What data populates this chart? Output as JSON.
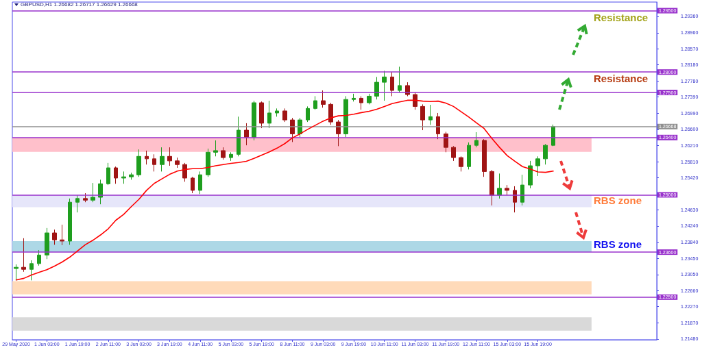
{
  "chart_data": {
    "type": "candlestick",
    "title": "GBPUSD,H1 1.26682 1.26717 1.26629 1.26668",
    "categories": [
      "29 May 2020",
      null,
      null,
      null,
      "1 Jun 03:00",
      null,
      null,
      null,
      "1 Jun 19:00",
      null,
      null,
      null,
      "2 Jun 11:00",
      null,
      null,
      null,
      "3 Jun 03:00",
      null,
      null,
      null,
      "3 Jun 19:00",
      null,
      null,
      null,
      "4 Jun 11:00",
      null,
      null,
      null,
      "5 Jun 03:00",
      null,
      null,
      null,
      "5 Jun 19:00",
      null,
      null,
      null,
      "8 Jun 11:00",
      null,
      null,
      null,
      "9 Jun 03:00",
      null,
      null,
      null,
      "9 Jun 19:00",
      null,
      null,
      null,
      "10 Jun 11:00",
      null,
      null,
      null,
      "11 Jun 03:00",
      null,
      null,
      null,
      "11 Jun 19:00",
      null,
      null,
      null,
      "12 Jun 11:00",
      null,
      null,
      null,
      "15 Jun 03:00",
      null,
      null,
      null,
      "15 Jun 19:00",
      null,
      null,
      null,
      null,
      null,
      null,
      null,
      null,
      null,
      null,
      null,
      null,
      null,
      null,
      null
    ],
    "ohlc": [
      [
        1.232,
        1.233,
        1.2291,
        1.2323
      ],
      [
        1.2323,
        1.2394,
        1.2312,
        1.2318
      ],
      [
        1.2318,
        1.234,
        1.2291,
        1.2332
      ],
      [
        1.2332,
        1.2365,
        1.2327,
        1.2353
      ],
      [
        1.2353,
        1.2419,
        1.2343,
        1.2407
      ],
      [
        1.2407,
        1.2415,
        1.2378,
        1.239
      ],
      [
        1.239,
        1.2427,
        1.2377,
        1.2387
      ],
      [
        1.2387,
        1.2491,
        1.2378,
        1.2482
      ],
      [
        1.2482,
        1.2499,
        1.2457,
        1.2491
      ],
      [
        1.2491,
        1.2504,
        1.2482,
        1.2487
      ],
      [
        1.2487,
        1.2529,
        1.2482,
        1.2494
      ],
      [
        1.2494,
        1.2537,
        1.2477,
        1.2527
      ],
      [
        1.2527,
        1.2578,
        1.2524,
        1.2566
      ],
      [
        1.2566,
        1.2569,
        1.2527,
        1.2541
      ],
      [
        1.2541,
        1.2557,
        1.2527,
        1.2544
      ],
      [
        1.2544,
        1.2554,
        1.2537,
        1.2549
      ],
      [
        1.2549,
        1.2611,
        1.2544,
        1.2594
      ],
      [
        1.2594,
        1.2608,
        1.2574,
        1.2588
      ],
      [
        1.2588,
        1.2599,
        1.2557,
        1.2574
      ],
      [
        1.2574,
        1.2616,
        1.2557,
        1.2594
      ],
      [
        1.2594,
        1.2616,
        1.2571,
        1.2583
      ],
      [
        1.2583,
        1.2591,
        1.2566,
        1.2574
      ],
      [
        1.2574,
        1.2578,
        1.2532,
        1.2541
      ],
      [
        1.2541,
        1.2544,
        1.2504,
        1.2511
      ],
      [
        1.2511,
        1.2557,
        1.2502,
        1.2549
      ],
      [
        1.2549,
        1.2613,
        1.2544,
        1.2604
      ],
      [
        1.2604,
        1.2633,
        1.2594,
        1.2608
      ],
      [
        1.2608,
        1.2616,
        1.2586,
        1.2591
      ],
      [
        1.2591,
        1.2604,
        1.2583,
        1.2599
      ],
      [
        1.2599,
        1.2691,
        1.2594,
        1.2658
      ],
      [
        1.2658,
        1.2675,
        1.2621,
        1.2641
      ],
      [
        1.2641,
        1.273,
        1.2633,
        1.2725
      ],
      [
        1.2725,
        1.2728,
        1.2663,
        1.2675
      ],
      [
        1.2675,
        1.273,
        1.2663,
        1.27
      ],
      [
        1.27,
        1.2711,
        1.2691,
        1.2705
      ],
      [
        1.2705,
        1.2711,
        1.2678,
        1.2683
      ],
      [
        1.2683,
        1.2688,
        1.2629,
        1.2649
      ],
      [
        1.2649,
        1.2688,
        1.2641,
        1.2683
      ],
      [
        1.2683,
        1.2716,
        1.2678,
        1.2711
      ],
      [
        1.2711,
        1.2741,
        1.2708,
        1.273
      ],
      [
        1.273,
        1.2755,
        1.2713,
        1.2721
      ],
      [
        1.2721,
        1.2725,
        1.2671,
        1.2678
      ],
      [
        1.2678,
        1.2683,
        1.2619,
        1.2649
      ],
      [
        1.2649,
        1.2741,
        1.2641,
        1.2733
      ],
      [
        1.2733,
        1.2747,
        1.2728,
        1.2736
      ],
      [
        1.2736,
        1.2741,
        1.2708,
        1.2725
      ],
      [
        1.2725,
        1.2747,
        1.2721,
        1.2741
      ],
      [
        1.2741,
        1.2788,
        1.2733,
        1.2775
      ],
      [
        1.2775,
        1.2803,
        1.273,
        1.2788
      ],
      [
        1.2788,
        1.28,
        1.2741,
        1.2755
      ],
      [
        1.2755,
        1.2813,
        1.275,
        1.2767
      ],
      [
        1.2767,
        1.2775,
        1.2741,
        1.2745
      ],
      [
        1.2745,
        1.275,
        1.2708,
        1.2716
      ],
      [
        1.2716,
        1.2721,
        1.2658,
        1.2683
      ],
      [
        1.2683,
        1.272,
        1.2671,
        1.2691
      ],
      [
        1.2691,
        1.27,
        1.2636,
        1.2649
      ],
      [
        1.2649,
        1.2654,
        1.2604,
        1.2616
      ],
      [
        1.2616,
        1.2619,
        1.2583,
        1.2591
      ],
      [
        1.2591,
        1.2594,
        1.2557,
        1.2569
      ],
      [
        1.2569,
        1.2628,
        1.2562,
        1.2621
      ],
      [
        1.2621,
        1.2653,
        1.2616,
        1.2633
      ],
      [
        1.2633,
        1.2636,
        1.2544,
        1.2557
      ],
      [
        1.2557,
        1.2561,
        1.2474,
        1.2499
      ],
      [
        1.2499,
        1.2552,
        1.2491,
        1.2516
      ],
      [
        1.2516,
        1.2524,
        1.2499,
        1.2511
      ],
      [
        1.2511,
        1.2521,
        1.2457,
        1.2482
      ],
      [
        1.2482,
        1.2549,
        1.2474,
        1.2524
      ],
      [
        1.2524,
        1.2583,
        1.2516,
        1.2571
      ],
      [
        1.2571,
        1.2594,
        1.2546,
        1.2588
      ],
      [
        1.2588,
        1.2624,
        1.2574,
        1.2621
      ],
      [
        1.2621,
        1.26717,
        1.2619,
        1.26668
      ],
      null,
      null,
      null,
      null,
      null,
      null,
      null,
      null,
      null,
      null,
      null,
      null,
      null
    ],
    "colors": [
      "#1e9e1e",
      "#a01414",
      "#1e9e1e",
      "#1e9e1e",
      "#1e9e1e",
      "#a01414",
      "#a01414",
      "#1e9e1e",
      "#1e9e1e",
      "#a01414",
      "#1e9e1e",
      "#1e9e1e",
      "#1e9e1e",
      "#a01414",
      "#1e9e1e",
      "#1e9e1e",
      "#1e9e1e",
      "#a01414",
      "#a01414",
      "#1e9e1e",
      "#a01414",
      "#a01414",
      "#a01414",
      "#a01414",
      "#1e9e1e",
      "#1e9e1e",
      "#1e9e1e",
      "#a01414",
      "#1e9e1e",
      "#1e9e1e",
      "#a01414",
      "#1e9e1e",
      "#a01414",
      "#1e9e1e",
      "#1e9e1e",
      "#a01414",
      "#a01414",
      "#1e9e1e",
      "#1e9e1e",
      "#1e9e1e",
      "#a01414",
      "#a01414",
      "#a01414",
      "#1e9e1e",
      "#1e9e1e",
      "#a01414",
      "#1e9e1e",
      "#1e9e1e",
      "#1e9e1e",
      "#a01414",
      "#1e9e1e",
      "#a01414",
      "#a01414",
      "#a01414",
      "#1e9e1e",
      "#a01414",
      "#a01414",
      "#a01414",
      "#a01414",
      "#1e9e1e",
      "#1e9e1e",
      "#a01414",
      "#a01414",
      "#1e9e1e",
      "#a01414",
      "#a01414",
      "#1e9e1e",
      "#1e9e1e",
      "#1e9e1e",
      "#1e9e1e",
      "#1e9e1e",
      null,
      null,
      null,
      null,
      null,
      null,
      null,
      null,
      null,
      null,
      null,
      null,
      null
    ],
    "series": [
      {
        "type": "line",
        "color": "#ff0000",
        "values": [
          1.2292,
          1.2296,
          1.2304,
          1.2311,
          1.2317,
          1.2326,
          1.2336,
          1.2348,
          1.2363,
          1.2378,
          1.2389,
          1.2402,
          1.2417,
          1.2438,
          1.2452,
          1.2471,
          1.2489,
          1.2511,
          1.2528,
          1.2539,
          1.255,
          1.2558,
          1.2562,
          1.2564,
          1.2564,
          1.2567,
          1.2571,
          1.2574,
          1.2577,
          1.2579,
          1.2582,
          1.2589,
          1.2597,
          1.2605,
          1.2614,
          1.2625,
          1.2639,
          1.2649,
          1.266,
          1.267,
          1.268,
          1.2688,
          1.2693,
          1.2694,
          1.2697,
          1.2701,
          1.2704,
          1.2709,
          1.2716,
          1.2723,
          1.2727,
          1.2731,
          1.2731,
          1.2729,
          1.2728,
          1.2729,
          1.2724,
          1.2716,
          1.2703,
          1.269,
          1.2676,
          1.2662,
          1.2638,
          1.2616,
          1.2596,
          1.2582,
          1.2569,
          1.2563,
          1.2556,
          1.2555,
          1.2558,
          null,
          null,
          null,
          null,
          null,
          null,
          null,
          null,
          null,
          null,
          null,
          null,
          null
        ]
      }
    ],
    "ylim": [
      1.2146,
      1.2971
    ],
    "yticks": [
      {
        "value": 1.2148,
        "label": "1.21480"
      },
      {
        "value": 1.2187,
        "label": "1.21870"
      },
      {
        "value": 1.2227,
        "label": "1.22270"
      },
      {
        "value": 1.2266,
        "label": "1.22660"
      },
      {
        "value": 1.2305,
        "label": "1.23050"
      },
      {
        "value": 1.2345,
        "label": "1.23450"
      },
      {
        "value": 1.2384,
        "label": "1.23840"
      },
      {
        "value": 1.2424,
        "label": "1.24240"
      },
      {
        "value": 1.2463,
        "label": "1.24630"
      },
      {
        "value": 1.2542,
        "label": "1.25420"
      },
      {
        "value": 1.2581,
        "label": "1.25810"
      },
      {
        "value": 1.2621,
        "label": "1.26210"
      },
      {
        "value": 1.266,
        "label": "1.26600"
      },
      {
        "value": 1.2699,
        "label": "1.26990"
      },
      {
        "value": 1.2739,
        "label": "1.27390"
      },
      {
        "value": 1.2778,
        "label": "1.27780"
      },
      {
        "value": 1.2818,
        "label": "1.28180"
      },
      {
        "value": 1.2857,
        "label": "1.28570"
      },
      {
        "value": 1.2896,
        "label": "1.28960"
      },
      {
        "value": 1.2936,
        "label": "1.29360"
      }
    ],
    "ref_lines": [
      {
        "axis": "y",
        "value": 1.295,
        "label": "1.29500",
        "color": "#9932cc"
      },
      {
        "axis": "y",
        "value": 1.28,
        "label": "1.28000",
        "color": "#9932cc"
      },
      {
        "axis": "y",
        "value": 1.275,
        "label": "1.27500",
        "color": "#9932cc"
      },
      {
        "axis": "y",
        "value": 1.26668,
        "label": "1.26668",
        "color": "#909090"
      },
      {
        "axis": "y",
        "value": 1.264,
        "label": "1.26400",
        "color": "#9932cc"
      },
      {
        "axis": "y",
        "value": 1.25,
        "label": "1.25000",
        "color": "#9932cc"
      },
      {
        "axis": "y",
        "value": 1.236,
        "label": "1.23600",
        "color": "#9932cc"
      },
      {
        "axis": "y",
        "value": 1.225,
        "label": "1.22500",
        "color": "#9932cc"
      }
    ],
    "bands": [
      {
        "axis": "y",
        "from": 1.2605,
        "to": 1.264,
        "color": "#ffc0cb"
      },
      {
        "axis": "y",
        "from": 1.247,
        "to": 1.25,
        "color": "#e6e6fa"
      },
      {
        "axis": "y",
        "from": 1.236,
        "to": 1.2387,
        "color": "#add8e6"
      },
      {
        "axis": "y",
        "from": 1.2257,
        "to": 1.2289,
        "color": "#ffdab9"
      },
      {
        "axis": "y",
        "from": 1.2168,
        "to": 1.2201,
        "color": "#d9d9d9"
      }
    ],
    "annotations": [
      "Resistance",
      "Resistance",
      "RBS zone",
      "RBS zone"
    ],
    "grid": false,
    "marker": "none",
    "line_style": "solid"
  }
}
